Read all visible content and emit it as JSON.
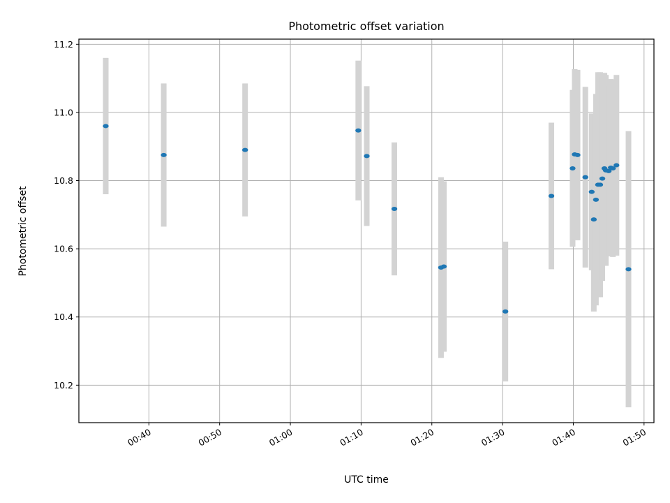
{
  "chart_data": {
    "type": "scatter",
    "title": "Photometric offset variation",
    "xlabel": "UTC time",
    "ylabel": "Photometric offset",
    "x_axis": {
      "unit": "minutes after 00:00 UTC",
      "ticks": [
        40,
        50,
        60,
        70,
        80,
        90,
        100,
        110
      ],
      "tick_labels": [
        "00:40",
        "00:50",
        "01:00",
        "01:10",
        "01:20",
        "01:30",
        "01:40",
        "01:50"
      ],
      "range": [
        30.1,
        111.4
      ]
    },
    "y_axis": {
      "ticks": [
        10.2,
        10.4,
        10.6,
        10.8,
        11.0,
        11.2
      ],
      "tick_labels": [
        "10.2",
        "10.4",
        "10.6",
        "10.8",
        "11.0",
        "11.2"
      ],
      "range": [
        10.09,
        11.215
      ]
    },
    "grid": true,
    "colors": {
      "point": "#1f77b4",
      "errorbar": "#d3d3d3"
    },
    "series": [
      {
        "points": [
          {
            "t": 33.9,
            "y": 10.96,
            "err": 0.2
          },
          {
            "t": 42.1,
            "y": 10.875,
            "err": 0.21
          },
          {
            "t": 53.6,
            "y": 10.89,
            "err": 0.195
          },
          {
            "t": 69.6,
            "y": 10.947,
            "err": 0.205
          },
          {
            "t": 70.8,
            "y": 10.872,
            "err": 0.205
          },
          {
            "t": 74.7,
            "y": 10.717,
            "err": 0.195
          },
          {
            "t": 81.3,
            "y": 10.545,
            "err": 0.265
          },
          {
            "t": 81.7,
            "y": 10.548,
            "err": 0.25
          },
          {
            "t": 90.4,
            "y": 10.416,
            "err": 0.205
          },
          {
            "t": 96.9,
            "y": 10.755,
            "err": 0.215
          },
          {
            "t": 99.9,
            "y": 10.836,
            "err": 0.23
          },
          {
            "t": 100.2,
            "y": 10.877,
            "err": 0.25
          },
          {
            "t": 100.6,
            "y": 10.875,
            "err": 0.25
          },
          {
            "t": 101.7,
            "y": 10.81,
            "err": 0.265
          },
          {
            "t": 102.6,
            "y": 10.767,
            "err": 0.23
          },
          {
            "t": 102.9,
            "y": 10.686,
            "err": 0.27
          },
          {
            "t": 103.2,
            "y": 10.744,
            "err": 0.31
          },
          {
            "t": 103.5,
            "y": 10.788,
            "err": 0.33
          },
          {
            "t": 103.8,
            "y": 10.788,
            "err": 0.33
          },
          {
            "t": 104.1,
            "y": 10.806,
            "err": 0.3
          },
          {
            "t": 104.4,
            "y": 10.836,
            "err": 0.28
          },
          {
            "t": 104.6,
            "y": 10.83,
            "err": 0.28
          },
          {
            "t": 105.0,
            "y": 10.828,
            "err": 0.25
          },
          {
            "t": 105.3,
            "y": 10.838,
            "err": 0.26
          },
          {
            "t": 105.6,
            "y": 10.836,
            "err": 0.26
          },
          {
            "t": 106.1,
            "y": 10.845,
            "err": 0.265
          },
          {
            "t": 107.8,
            "y": 10.54,
            "err": 0.405
          }
        ]
      }
    ]
  }
}
